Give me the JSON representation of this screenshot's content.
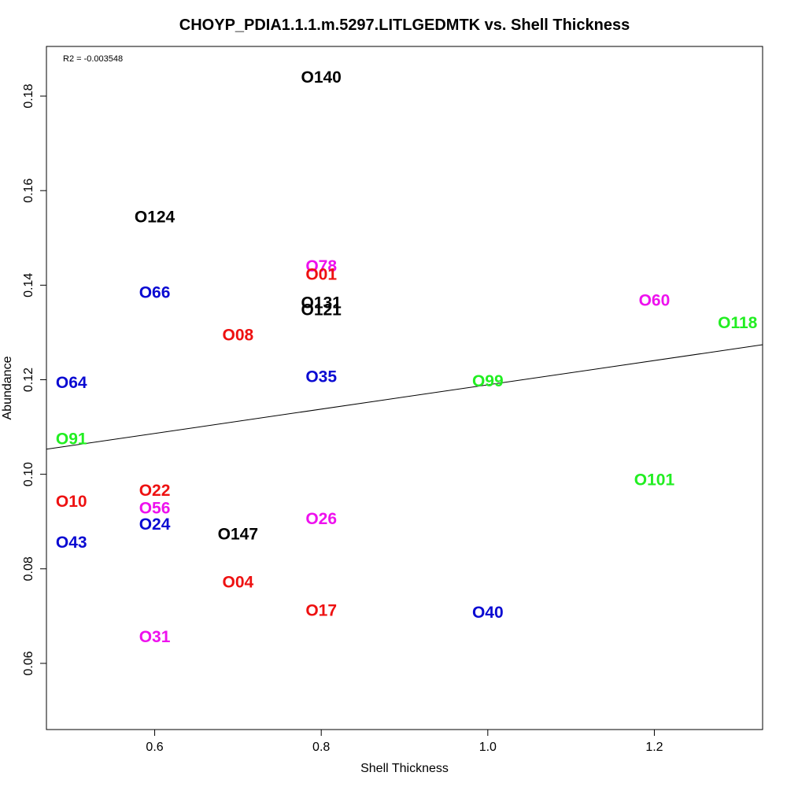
{
  "chart_data": {
    "type": "scatter",
    "title": "CHOYP_PDIA1.1.1.m.5297.LITLGEDMTK vs. Shell Thickness",
    "xlabel": "Shell Thickness",
    "ylabel": "Abundance",
    "xlim": [
      0.47,
      1.33
    ],
    "ylim": [
      0.046,
      0.1905
    ],
    "xticks": [
      0.6,
      0.8,
      1.0,
      1.2
    ],
    "xtick_labels": [
      "0.6",
      "0.8",
      "1.0",
      "1.2"
    ],
    "yticks": [
      0.06,
      0.08,
      0.1,
      0.12,
      0.14,
      0.16,
      0.18
    ],
    "ytick_labels": [
      "0.06",
      "0.08",
      "0.10",
      "0.12",
      "0.14",
      "0.16",
      "0.18"
    ],
    "grid": false,
    "annotation": "R2 = -0.003548",
    "fit_line": {
      "x": [
        0.47,
        1.33
      ],
      "y": [
        0.1053,
        0.1274
      ]
    },
    "colors": {
      "black": "#000000",
      "red": "#ee1111",
      "blue": "#0a0ad2",
      "magenta": "#ee11ee",
      "green": "#22ee22"
    },
    "points": [
      {
        "label": "O140",
        "x": 0.8,
        "y": 0.1839,
        "color": "black"
      },
      {
        "label": "O124",
        "x": 0.6,
        "y": 0.1544,
        "color": "black"
      },
      {
        "label": "O78",
        "x": 0.8,
        "y": 0.144,
        "color": "magenta"
      },
      {
        "label": "O01",
        "x": 0.8,
        "y": 0.1422,
        "color": "red"
      },
      {
        "label": "O66",
        "x": 0.6,
        "y": 0.1384,
        "color": "blue"
      },
      {
        "label": "O131",
        "x": 0.8,
        "y": 0.1362,
        "color": "black"
      },
      {
        "label": "O121",
        "x": 0.8,
        "y": 0.1347,
        "color": "black"
      },
      {
        "label": "O60",
        "x": 1.2,
        "y": 0.1367,
        "color": "magenta"
      },
      {
        "label": "O118",
        "x": 1.3,
        "y": 0.132,
        "color": "green"
      },
      {
        "label": "O08",
        "x": 0.7,
        "y": 0.1294,
        "color": "red"
      },
      {
        "label": "O35",
        "x": 0.8,
        "y": 0.1206,
        "color": "blue"
      },
      {
        "label": "O64",
        "x": 0.5,
        "y": 0.1193,
        "color": "blue"
      },
      {
        "label": "O99",
        "x": 1.0,
        "y": 0.1197,
        "color": "green"
      },
      {
        "label": "O91",
        "x": 0.5,
        "y": 0.1074,
        "color": "green"
      },
      {
        "label": "O101",
        "x": 1.2,
        "y": 0.0988,
        "color": "green"
      },
      {
        "label": "O22",
        "x": 0.6,
        "y": 0.0965,
        "color": "red"
      },
      {
        "label": "O10",
        "x": 0.5,
        "y": 0.0942,
        "color": "red"
      },
      {
        "label": "O56",
        "x": 0.6,
        "y": 0.0928,
        "color": "magenta"
      },
      {
        "label": "O26",
        "x": 0.8,
        "y": 0.0905,
        "color": "magenta"
      },
      {
        "label": "O24",
        "x": 0.6,
        "y": 0.0894,
        "color": "blue"
      },
      {
        "label": "O147",
        "x": 0.7,
        "y": 0.0873,
        "color": "black"
      },
      {
        "label": "O43",
        "x": 0.5,
        "y": 0.0855,
        "color": "blue"
      },
      {
        "label": "O04",
        "x": 0.7,
        "y": 0.0771,
        "color": "red"
      },
      {
        "label": "O17",
        "x": 0.8,
        "y": 0.0711,
        "color": "red"
      },
      {
        "label": "O40",
        "x": 1.0,
        "y": 0.0707,
        "color": "blue"
      },
      {
        "label": "O31",
        "x": 0.6,
        "y": 0.0656,
        "color": "magenta"
      }
    ]
  }
}
